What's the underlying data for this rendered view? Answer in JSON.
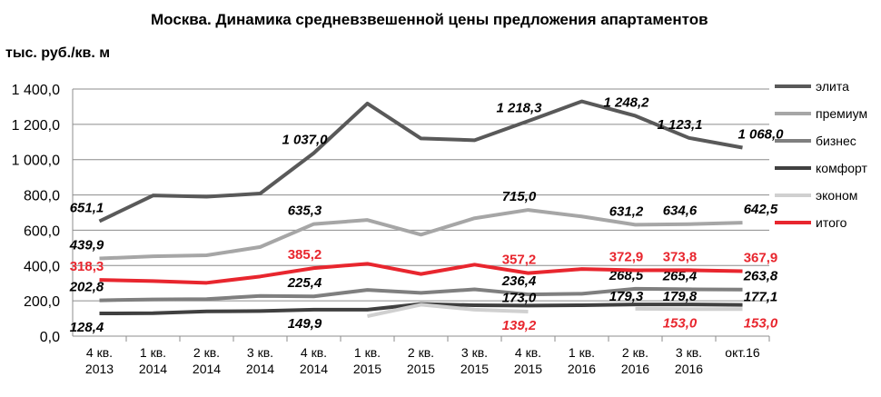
{
  "chart_data": {
    "type": "line",
    "title": "Москва. Динамика средневзвешенной цены предложения апартаментов",
    "ylabel": "тыс. руб./кв. м",
    "xlabel": "",
    "ylim": [
      0,
      1400
    ],
    "yticks": [
      "0,0",
      "200,0",
      "400,0",
      "600,0",
      "800,0",
      "1 000,0",
      "1 200,0",
      "1 400,0"
    ],
    "categories": [
      [
        "4 кв.",
        "2013"
      ],
      [
        "1 кв.",
        "2014"
      ],
      [
        "2 кв.",
        "2014"
      ],
      [
        "3 кв.",
        "2014"
      ],
      [
        "4 кв.",
        "2014"
      ],
      [
        "1 кв.",
        "2015"
      ],
      [
        "2 кв.",
        "2015"
      ],
      [
        "3 кв.",
        "2015"
      ],
      [
        "4 кв.",
        "2015"
      ],
      [
        "1 кв.",
        "2016"
      ],
      [
        "2 кв.",
        "2016"
      ],
      [
        "3 кв.",
        "2016"
      ],
      [
        "окт.16",
        ""
      ]
    ],
    "grid": true,
    "legend": "right",
    "series": [
      {
        "name": "элита",
        "color": "#595959",
        "values": [
          651.1,
          797,
          790,
          808,
          1037.0,
          1318,
          1120,
          1110,
          1218.3,
          1330,
          1248.2,
          1123.1,
          1068.0
        ],
        "labels": {
          "0": "651,1",
          "4": "1 037,0",
          "8": "1 218,3",
          "10": "1 248,2",
          "11": "1 123,1",
          "12": "1 068,0"
        },
        "label_color": "#000"
      },
      {
        "name": "премиум",
        "color": "#a6a6a6",
        "values": [
          439.9,
          452,
          458,
          505,
          635.3,
          658,
          575,
          668,
          715.0,
          678,
          631.2,
          634.6,
          642.5
        ],
        "labels": {
          "0": "439,9",
          "4": "635,3",
          "8": "715,0",
          "10": "631,2",
          "11": "634,6",
          "12": "642,5"
        },
        "label_color": "#000"
      },
      {
        "name": "бизнес",
        "color": "#7f7f7f",
        "values": [
          202.8,
          208,
          210,
          228,
          225.4,
          262,
          245,
          265,
          236.4,
          240,
          268.5,
          265.4,
          263.8
        ],
        "labels": {
          "0": "202,8",
          "4": "225,4",
          "8": "236,4",
          "10": "268,5",
          "11": "265,4",
          "12": "263,8"
        },
        "label_color": "#000"
      },
      {
        "name": "комфорт",
        "color": "#404040",
        "values": [
          128.4,
          130,
          140,
          142,
          149.9,
          150,
          182,
          175,
          173.0,
          175,
          179.3,
          179.8,
          177.1
        ],
        "labels": {
          "0": "128,4",
          "4": "149,9",
          "8": "173,0",
          "10": "179,3",
          "11": "179,8",
          "12": "177,1"
        },
        "label_color": "#000"
      },
      {
        "name": "эконом",
        "color": "#d0d0d0",
        "values": [
          null,
          null,
          null,
          null,
          null,
          113,
          178,
          150,
          139.2,
          null,
          155,
          153.0,
          153.0
        ],
        "labels": {
          "8": "139,2",
          "11": "153,0",
          "12": "153,0"
        },
        "label_color": "#e8262e"
      },
      {
        "name": "итого",
        "color": "#e8262e",
        "values": [
          318.3,
          312,
          302,
          338,
          385.2,
          410,
          352,
          405,
          357.2,
          380,
          372.9,
          373.8,
          367.9
        ],
        "labels": {
          "0": "318,3",
          "4": "385,2",
          "8": "357,2",
          "10": "372,9",
          "11": "373,8",
          "12": "367,9"
        },
        "label_color": "#e8262e"
      }
    ]
  }
}
